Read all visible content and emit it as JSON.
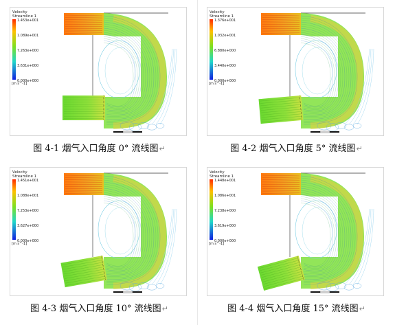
{
  "legend": {
    "title": "Velocity",
    "subtitle": "Streamline 1",
    "unit": "[m s^-1]"
  },
  "panels": [
    {
      "caption": "图 4-1 烟气入口角度 0° 流线图",
      "ticks": [
        "1.453e+001",
        "1.089e+001",
        "7.263e+000",
        "3.631e+000",
        "0.000e+000"
      ],
      "inlet_angle_deg": 0
    },
    {
      "caption": "图 4-2 烟气入口角度 5° 流线图",
      "ticks": [
        "1.376e+001",
        "1.032e+001",
        "6.880e+000",
        "3.440e+000",
        "0.000e+000"
      ],
      "inlet_angle_deg": 5
    },
    {
      "caption": "图 4-3 烟气入口角度 10° 流线图",
      "ticks": [
        "1.451e+001",
        "1.088e+001",
        "7.253e+000",
        "3.627e+000",
        "0.000e+000"
      ],
      "inlet_angle_deg": 10
    },
    {
      "caption": "图 4-4 烟气入口角度 15° 流线图",
      "ticks": [
        "1.448e+001",
        "1.086e+001",
        "7.238e+000",
        "3.619e+000",
        "0.000e+000"
      ],
      "inlet_angle_deg": 15
    }
  ],
  "colors": {
    "hot": "#e8561a",
    "warm": "#f5c518",
    "mid": "#7de03a",
    "cool": "#2ec4d6",
    "cold": "#2a4ad8"
  },
  "paragraph_mark": "↵"
}
